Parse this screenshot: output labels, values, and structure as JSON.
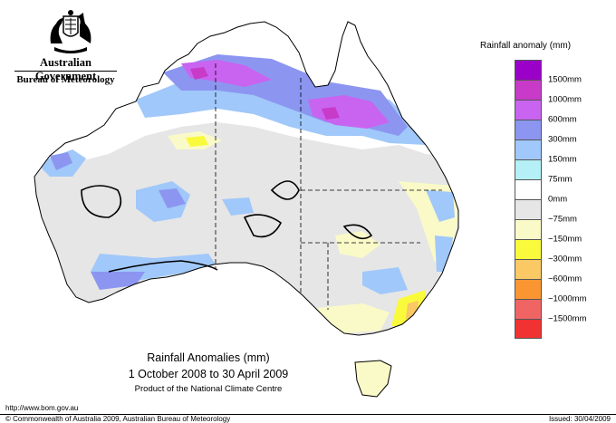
{
  "header": {
    "government": "Australian Government",
    "bureau": "Bureau of Meteorology"
  },
  "map": {
    "title": "Rainfall Anomalies (mm)",
    "period": "1 October 2008 to 30 April 2009",
    "product": "Product of the National Climate Centre"
  },
  "legend": {
    "title": "Rainfall anomaly (mm)",
    "colors": [
      "#9b00c8",
      "#c83ac8",
      "#c864f0",
      "#8c96f0",
      "#a0c8fa",
      "#b4f0f5",
      "#ffffff",
      "#e6e6e6",
      "#fafac8",
      "#fafa3c",
      "#fac864",
      "#fa9632",
      "#f06464",
      "#f03232"
    ],
    "labels": [
      "1500mm",
      "1000mm",
      "600mm",
      "300mm",
      "150mm",
      "75mm",
      "0mm",
      "−75mm",
      "−150mm",
      "−300mm",
      "−600mm",
      "−1000mm",
      "−1500mm"
    ]
  },
  "footer": {
    "url": "http://www.bom.gov.au",
    "copyright": "© Commonwealth of Australia 2009, Australian Bureau of Meteorology",
    "issued": "Issued: 30/04/2009"
  }
}
